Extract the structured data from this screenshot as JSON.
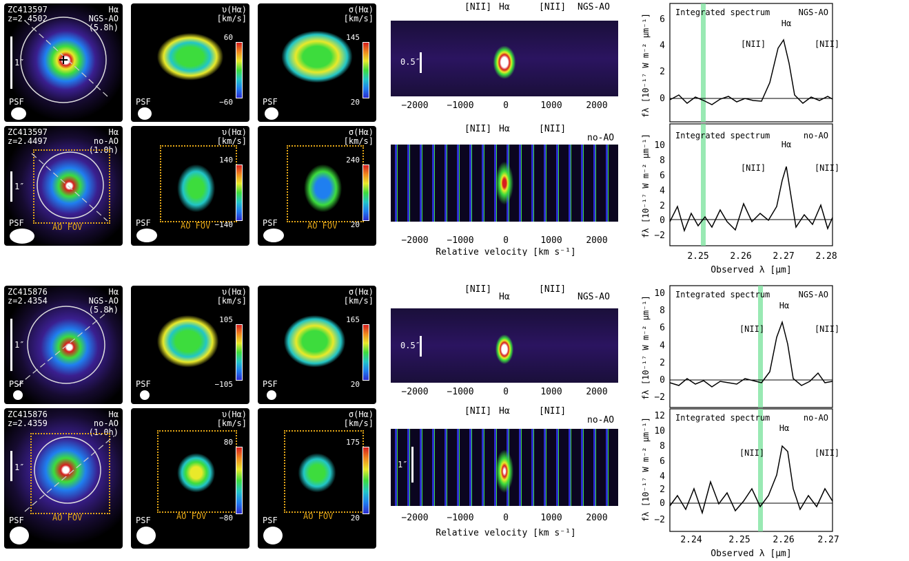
{
  "galaxies": [
    {
      "id": "ZC413597",
      "rows": [
        {
          "mode": "NGS-AO",
          "z": "z=2.4502",
          "time": "(5.8h)",
          "v_max": "60",
          "v_min": "−60",
          "s_max": "145",
          "s_min": "20",
          "pv_mode": "NGS-AO",
          "pv_scale": "0.5″",
          "spec_mode": "NGS-AO"
        },
        {
          "mode": "no-AO",
          "z": "z=2.4497",
          "time": "(1.0h)",
          "v_max": "140",
          "v_min": "−140",
          "s_max": "240",
          "s_min": "20",
          "pv_mode": "no-AO",
          "pv_scale": "",
          "spec_mode": "no-AO"
        }
      ],
      "spec_xticks": [
        "2.25",
        "2.26",
        "2.27",
        "2.28"
      ],
      "spec_top_yticks": [
        "6",
        "4",
        "2",
        "0"
      ],
      "spec_bot_yticks": [
        "10",
        "8",
        "6",
        "4",
        "2",
        "0",
        "−2"
      ]
    },
    {
      "id": "ZC415876",
      "rows": [
        {
          "mode": "NGS-AO",
          "z": "z=2.4354",
          "time": "(5.8h)",
          "v_max": "105",
          "v_min": "−105",
          "s_max": "165",
          "s_min": "20",
          "pv_mode": "NGS-AO",
          "pv_scale": "0.5″",
          "spec_mode": "NGS-AO"
        },
        {
          "mode": "no-AO",
          "z": "z=2.4359",
          "time": "(1.0h)",
          "v_max": "80",
          "v_min": "−80",
          "s_max": "175",
          "s_min": "20",
          "pv_mode": "no-AO",
          "pv_scale": "1″",
          "spec_mode": "no-AO"
        }
      ],
      "spec_xticks": [
        "2.24",
        "2.25",
        "2.26",
        "2.27"
      ],
      "spec_top_yticks": [
        "10",
        "8",
        "6",
        "4",
        "2",
        "0",
        "−2"
      ],
      "spec_bot_yticks": [
        "12",
        "10",
        "8",
        "6",
        "4",
        "2",
        "0",
        "−2"
      ]
    }
  ],
  "labels": {
    "halpha": "Hα",
    "one_arcsec": "1″",
    "psf": "PSF",
    "ao_fov": "AO FOV",
    "v_title": "υ(Hα)",
    "s_title": "σ(Hα)",
    "kms": "[km/s]",
    "nii": "[NII]",
    "pv_xlabel": "Relative velocity  [km s⁻¹]",
    "pv_xticks": [
      "−2000",
      "−1000",
      "0",
      "1000",
      "2000"
    ],
    "integrated": "Integrated spectrum",
    "spec_ylabel": "fλ [10⁻¹⁷ W m⁻² μm⁻¹]",
    "spec_xlabel": "Observed λ  [μm]"
  },
  "colors": {
    "ao_fov": "#e6a817",
    "band": "#7fe3a0"
  }
}
